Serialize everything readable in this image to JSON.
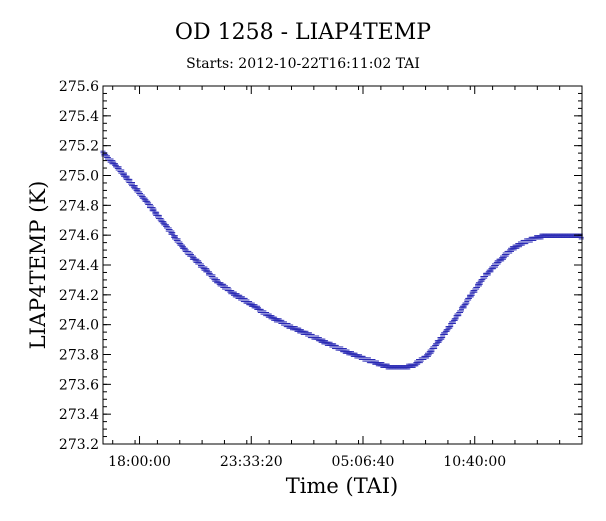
{
  "chart_data": {
    "type": "scatter",
    "title": "OD 1258 - LIAP4TEMP",
    "subtitle": "Starts: 2012-10-22T16:11:02 TAI",
    "xlabel": "Time (TAI)",
    "ylabel": "LIAP4TEMP (K)",
    "x_tick_labels": [
      "18:00:00",
      "23:33:20",
      "05:06:40",
      "10:40:00"
    ],
    "x_tick_seconds": [
      64800,
      84800,
      104800,
      124800
    ],
    "xlim_seconds": [
      58262,
      144000
    ],
    "ylim": [
      273.2,
      275.6
    ],
    "y_ticks": [
      273.2,
      273.4,
      273.6,
      273.8,
      274.0,
      274.2,
      274.4,
      274.6,
      274.8,
      275.0,
      275.2,
      275.4,
      275.6
    ],
    "grid": false,
    "marker_color": "#2a2ab4",
    "series": [
      {
        "x_seconds": [
          58262,
          61000,
          64000,
          67000,
          70000,
          73000,
          76000,
          79000,
          82000,
          85000,
          88000,
          91000,
          94000,
          97000,
          100000,
          103000,
          106000,
          109000,
          112000,
          114000,
          116500,
          119000,
          121500,
          124000,
          126500,
          129000,
          131500,
          134000,
          136500,
          139000,
          141500,
          144000
        ],
        "values": [
          275.15,
          275.05,
          274.92,
          274.78,
          274.64,
          274.5,
          274.39,
          274.28,
          274.2,
          274.13,
          274.06,
          274.0,
          273.95,
          273.9,
          273.85,
          273.8,
          273.76,
          273.72,
          273.71,
          273.73,
          273.8,
          273.92,
          274.05,
          274.19,
          274.32,
          274.42,
          274.51,
          274.56,
          274.59,
          274.6,
          274.6,
          274.59
        ]
      }
    ]
  }
}
